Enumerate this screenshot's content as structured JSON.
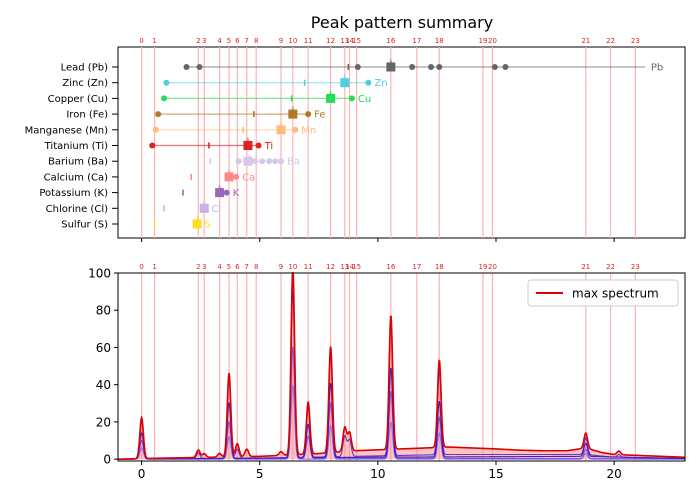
{
  "chart_data": [
    {
      "type": "scatter",
      "title": "Peak pattern summary",
      "xlim": [
        -1,
        23
      ],
      "grid": false,
      "peak_lines": {
        "x": [
          0,
          0.55,
          2.4,
          2.65,
          3.3,
          3.7,
          4.05,
          4.45,
          4.85,
          5.9,
          6.4,
          7.05,
          8.0,
          8.6,
          8.8,
          9.1,
          10.55,
          11.65,
          12.6,
          14.45,
          14.85,
          18.8,
          19.85,
          20.9
        ],
        "labels": [
          "0",
          "1",
          "2",
          "3",
          "4",
          "5",
          "6",
          "7",
          "8",
          "9",
          "10",
          "11",
          "12",
          "13",
          "14",
          "15",
          "16",
          "17",
          "18",
          "19",
          "20",
          "21",
          "22",
          "23"
        ]
      },
      "elements": [
        {
          "name": "Lead (Pb)",
          "symbol": "Pb",
          "color": "#666666",
          "marker": "square",
          "main": 10.55,
          "line": [
            1.9,
            21.3
          ],
          "tick": 8.75,
          "dots": [
            1.9,
            2.45,
            9.15,
            11.45,
            12.25,
            12.6,
            14.95,
            15.4
          ]
        },
        {
          "name": "Zinc (Zn)",
          "symbol": "Zn",
          "color": "#4ecfe0",
          "marker": "square",
          "main": 8.6,
          "line": [
            1.0,
            9.6
          ],
          "tick": 6.9,
          "dots": [
            1.05,
            9.6
          ]
        },
        {
          "name": "Copper (Cu)",
          "symbol": "Cu",
          "color": "#22dd55",
          "marker": "square",
          "main": 8.0,
          "line": [
            0.95,
            8.9
          ],
          "tick": 6.35,
          "dots": [
            0.95,
            8.9
          ]
        },
        {
          "name": "Iron (Fe)",
          "symbol": "Fe",
          "color": "#b07a25",
          "marker": "square",
          "main": 6.4,
          "line": [
            0.7,
            7.05
          ],
          "tick": 4.75,
          "dots": [
            0.7,
            7.05
          ]
        },
        {
          "name": "Manganese (Mn)",
          "symbol": "Mn",
          "color": "#ffbb77",
          "marker": "square",
          "main": 5.9,
          "line": [
            0.6,
            6.5
          ],
          "tick": 4.3,
          "dots": [
            0.6,
            6.5
          ]
        },
        {
          "name": "Titanium (Ti)",
          "symbol": "Ti",
          "color": "#dd2222",
          "marker": "square",
          "main": 4.5,
          "line": [
            0.45,
            4.95
          ],
          "tick": 2.85,
          "dots": [
            0.45,
            4.95
          ]
        },
        {
          "name": "Barium (Ba)",
          "symbol": "Ba",
          "color": "#d8c8e8",
          "marker": "square",
          "main": 4.5,
          "line": [
            4.1,
            5.9
          ],
          "tick": 2.9,
          "dots": [
            4.1,
            4.8,
            5.1,
            5.4,
            5.65,
            5.9
          ]
        },
        {
          "name": "Calcium (Ca)",
          "symbol": "Ca",
          "color": "#ff8888",
          "marker": "square",
          "main": 3.7,
          "line": [
            3.7,
            4.0
          ],
          "tick": 2.1,
          "dots": [
            4.0
          ]
        },
        {
          "name": "Potassium (K)",
          "symbol": "K",
          "color": "#9966bb",
          "marker": "square",
          "main": 3.3,
          "line": [
            3.3,
            3.6
          ],
          "tick": 1.75,
          "dots": [
            3.6
          ]
        },
        {
          "name": "Chlorine (Cl)",
          "symbol": "Cl",
          "color": "#c7b3e5",
          "marker": "square",
          "main": 2.65,
          "line": [
            2.65,
            2.7
          ],
          "tick": 0.95,
          "dots": []
        },
        {
          "name": "Sulfur (S)",
          "symbol": "S",
          "color": "#ffdd22",
          "marker": "square",
          "main": 2.35,
          "line": [
            2.35,
            2.4
          ],
          "tick": 0.55,
          "dots": []
        }
      ]
    },
    {
      "type": "line",
      "title": "",
      "xlabel": "",
      "ylabel": "",
      "xlim": [
        -1,
        23
      ],
      "ylim": [
        -1,
        100
      ],
      "xticks": [
        0,
        5,
        10,
        15,
        20
      ],
      "yticks": [
        0,
        20,
        40,
        60,
        80,
        100
      ],
      "legend": {
        "position": "top-right",
        "entries": [
          "max spectrum"
        ]
      },
      "series": [
        {
          "name": "max spectrum",
          "color": "#dd0000",
          "peaks": [
            [
              0,
              22
            ],
            [
              2.4,
              4
            ],
            [
              2.65,
              2
            ],
            [
              3.3,
              2
            ],
            [
              3.7,
              45
            ],
            [
              4.05,
              7
            ],
            [
              4.45,
              4
            ],
            [
              5.9,
              2
            ],
            [
              6.4,
              100
            ],
            [
              7.05,
              28
            ],
            [
              8.0,
              57
            ],
            [
              8.6,
              13
            ],
            [
              8.8,
              10
            ],
            [
              10.55,
              72
            ],
            [
              12.6,
              47
            ],
            [
              18.8,
              8
            ],
            [
              20.2,
              2
            ]
          ],
          "baseline": [
            [
              -1,
              0
            ],
            [
              0.7,
              0.5
            ],
            [
              5,
              1.5
            ],
            [
              7.5,
              3
            ],
            [
              9,
              4.5
            ],
            [
              10,
              5
            ],
            [
              13,
              6.5
            ],
            [
              14,
              6
            ],
            [
              15,
              5.5
            ],
            [
              16,
              4.8
            ],
            [
              17,
              4.5
            ],
            [
              18,
              4.5
            ],
            [
              18.8,
              6
            ],
            [
              19.5,
              3.5
            ],
            [
              20,
              2.5
            ],
            [
              21,
              2
            ],
            [
              22,
              1.5
            ],
            [
              23,
              1
            ]
          ]
        },
        {
          "name": "",
          "color": "#4422cc",
          "peaks": [
            [
              0,
              20
            ],
            [
              2.4,
              3
            ],
            [
              3.7,
              43
            ],
            [
              4.05,
              5
            ],
            [
              6.4,
              98
            ],
            [
              7.05,
              27
            ],
            [
              8.0,
              55
            ],
            [
              8.6,
              11
            ],
            [
              8.8,
              9
            ],
            [
              10.55,
              70
            ],
            [
              12.6,
              45
            ],
            [
              18.8,
              9
            ],
            [
              20.2,
              1.5
            ]
          ],
          "baseline": [
            [
              -1,
              0
            ],
            [
              5,
              0.5
            ],
            [
              9,
              1.5
            ],
            [
              13,
              2.5
            ],
            [
              18.8,
              2.5
            ],
            [
              20,
              1
            ],
            [
              23,
              0.5
            ]
          ]
        },
        {
          "name": "",
          "color": "#2200bb",
          "peaks": [
            [
              0,
              14
            ],
            [
              3.7,
              30
            ],
            [
              6.4,
              90
            ],
            [
              7.05,
              18
            ],
            [
              8.0,
              40
            ],
            [
              10.55,
              48
            ],
            [
              12.6,
              30
            ],
            [
              18.8,
              7
            ]
          ],
          "baseline": [
            [
              -1,
              0
            ],
            [
              9,
              1
            ],
            [
              18.8,
              1.5
            ],
            [
              23,
              0.3
            ]
          ]
        },
        {
          "name": "",
          "color": "#6644dd",
          "peaks": [
            [
              0,
              10
            ],
            [
              3.7,
              20
            ],
            [
              6.4,
              60
            ],
            [
              7.05,
              12
            ],
            [
              8.0,
              30
            ],
            [
              10.55,
              36
            ],
            [
              12.6,
              22
            ],
            [
              18.8,
              5
            ]
          ],
          "baseline": [
            [
              -1,
              0
            ],
            [
              9,
              0.5
            ],
            [
              23,
              0.2
            ]
          ]
        },
        {
          "name": "",
          "color": "#8866ee",
          "peaks": [
            [
              0,
              6
            ],
            [
              3.7,
              12
            ],
            [
              6.4,
              40
            ],
            [
              8.0,
              18
            ],
            [
              10.55,
              20
            ],
            [
              12.6,
              14
            ],
            [
              18.8,
              3
            ]
          ],
          "baseline": [
            [
              -1,
              0
            ],
            [
              23,
              0
            ]
          ]
        }
      ]
    }
  ]
}
